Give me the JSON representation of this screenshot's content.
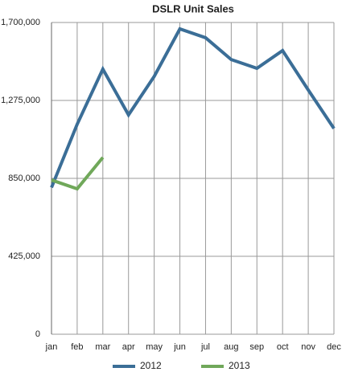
{
  "chart_data": {
    "type": "line",
    "title": "DSLR Unit Sales",
    "categories": [
      "jan",
      "feb",
      "mar",
      "apr",
      "may",
      "jun",
      "jul",
      "aug",
      "sep",
      "oct",
      "nov",
      "dec"
    ],
    "series": [
      {
        "name": "2012",
        "color": "#3b6e97",
        "values": [
          800000,
          1145000,
          1446000,
          1196000,
          1406000,
          1665000,
          1617000,
          1498000,
          1450000,
          1547000,
          1332000,
          1122000
        ]
      },
      {
        "name": "2013",
        "color": "#70a85a",
        "values": [
          841000,
          793000,
          964000,
          null,
          null,
          null,
          null,
          null,
          null,
          null,
          null,
          null
        ]
      }
    ],
    "ylim": [
      0,
      1700000
    ],
    "yticks": [
      0,
      {
        "value": 425000,
        "label": "425,000"
      },
      {
        "value": 850000,
        "label": "850,000"
      },
      {
        "value": 1275000,
        "label": "1,275,000"
      },
      {
        "value": 1700000,
        "label": "1,700,000"
      }
    ],
    "grid": true
  }
}
